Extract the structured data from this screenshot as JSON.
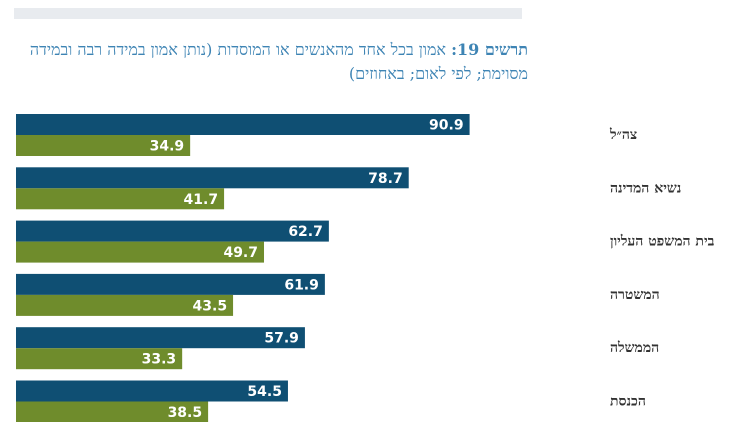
{
  "title": {
    "figure_label": "תרשים 19:",
    "text": "אמון בכל אחד מהאנשים או המוסדות (נותן אמון במידה רבה ובמידה מסוימת; לפי לאום; באחוזים)"
  },
  "colors": {
    "series_a": "#0f4f73",
    "series_b": "#6f8c2c",
    "title": "#3e84b4",
    "band": "#e8ebef"
  },
  "chart_data": {
    "type": "bar",
    "orientation": "horizontal",
    "categories": [
      "צה״ל",
      "נשיא המדינה",
      "בית המשפט העליון",
      "המשטרה",
      "הממשלה",
      "הכנסת"
    ],
    "series": [
      {
        "values": [
          90.9,
          78.7,
          62.7,
          61.9,
          57.9,
          54.5
        ]
      },
      {
        "values": [
          34.9,
          41.7,
          49.7,
          43.5,
          33.3,
          38.5
        ]
      }
    ],
    "xlim": [
      0,
      100
    ],
    "grid": false,
    "legend": "none",
    "value_format": "0.0"
  }
}
